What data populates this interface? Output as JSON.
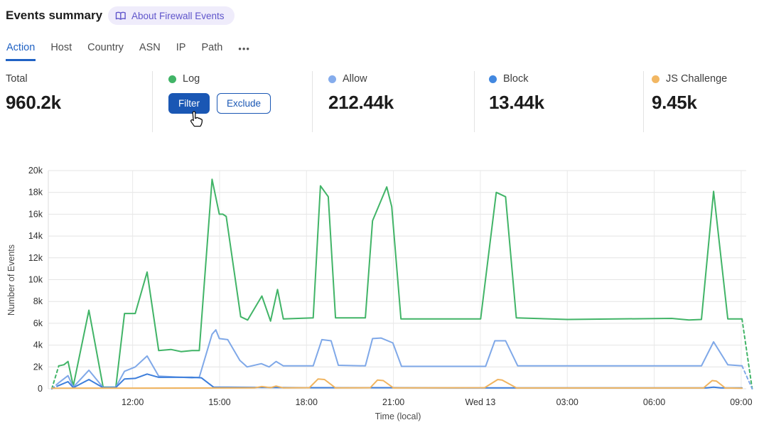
{
  "header": {
    "title": "Events summary",
    "about_badge": {
      "label": "About Firewall Events",
      "icon": "book-open-icon"
    }
  },
  "tabs": {
    "items": [
      {
        "label": "Action",
        "active": true
      },
      {
        "label": "Host",
        "active": false
      },
      {
        "label": "Country",
        "active": false
      },
      {
        "label": "ASN",
        "active": false
      },
      {
        "label": "IP",
        "active": false
      },
      {
        "label": "Path",
        "active": false
      }
    ],
    "more_label": "•••"
  },
  "stats": {
    "total": {
      "label": "Total",
      "value": "960.2k"
    },
    "log": {
      "label": "Log",
      "color": "#41b467",
      "filter_label": "Filter",
      "exclude_label": "Exclude"
    },
    "allow": {
      "label": "Allow",
      "value": "212.44k",
      "color": "#85acec"
    },
    "block": {
      "label": "Block",
      "value": "13.44k",
      "color": "#4288e0"
    },
    "js_challenge": {
      "label": "JS Challenge",
      "value": "9.45k",
      "color": "#f2b763"
    }
  },
  "chart_data": {
    "type": "line",
    "xlabel": "Time (local)",
    "ylabel": "Number of Events",
    "x_unit_note": "hours after 09:00 Tue, local time",
    "x_domain": [
      0.09,
      24.42
    ],
    "ylim": [
      0,
      20
    ],
    "y_unit": "k events",
    "grid": true,
    "x_ticks": [
      {
        "h": 3,
        "label": "12:00"
      },
      {
        "h": 6,
        "label": "15:00"
      },
      {
        "h": 9,
        "label": "18:00"
      },
      {
        "h": 12,
        "label": "21:00"
      },
      {
        "h": 15,
        "label": "Wed 13"
      },
      {
        "h": 18,
        "label": "03:00"
      },
      {
        "h": 21,
        "label": "06:00"
      },
      {
        "h": 24,
        "label": "09:00"
      }
    ],
    "y_ticks": [
      {
        "v": 0,
        "label": "0"
      },
      {
        "v": 2,
        "label": "2k"
      },
      {
        "v": 4,
        "label": "4k"
      },
      {
        "v": 6,
        "label": "6k"
      },
      {
        "v": 8,
        "label": "8k"
      },
      {
        "v": 10,
        "label": "10k"
      },
      {
        "v": 12,
        "label": "12k"
      },
      {
        "v": 14,
        "label": "14k"
      },
      {
        "v": 16,
        "label": "16k"
      },
      {
        "v": 18,
        "label": "18k"
      },
      {
        "v": 20,
        "label": "20k"
      }
    ],
    "series": [
      {
        "name": "Log",
        "color": "#41b467",
        "dash_pre": [
          [
            0.21,
            0
          ],
          [
            0.45,
            2.1
          ]
        ],
        "points": [
          [
            0.45,
            2.1
          ],
          [
            0.63,
            2.2
          ],
          [
            0.77,
            2.5
          ],
          [
            0.95,
            0.25
          ],
          [
            1.49,
            7.2
          ],
          [
            1.98,
            0.15
          ],
          [
            2.42,
            0.15
          ],
          [
            2.72,
            6.9
          ],
          [
            3.09,
            6.9
          ],
          [
            3.5,
            10.7
          ],
          [
            3.9,
            3.5
          ],
          [
            4.32,
            3.6
          ],
          [
            4.68,
            3.4
          ],
          [
            5.05,
            3.5
          ],
          [
            5.3,
            3.5
          ],
          [
            5.74,
            19.2
          ],
          [
            5.99,
            16.0
          ],
          [
            6.11,
            16.0
          ],
          [
            6.23,
            15.8
          ],
          [
            6.73,
            6.6
          ],
          [
            6.97,
            6.3
          ],
          [
            7.46,
            8.5
          ],
          [
            7.76,
            6.2
          ],
          [
            8.0,
            9.1
          ],
          [
            8.2,
            6.4
          ],
          [
            9.23,
            6.5
          ],
          [
            9.48,
            18.6
          ],
          [
            9.75,
            17.6
          ],
          [
            10.0,
            6.5
          ],
          [
            11.03,
            6.5
          ],
          [
            11.28,
            15.4
          ],
          [
            11.77,
            18.5
          ],
          [
            11.94,
            16.7
          ],
          [
            12.26,
            6.4
          ],
          [
            15.01,
            6.4
          ],
          [
            15.55,
            18.0
          ],
          [
            15.87,
            17.6
          ],
          [
            16.24,
            6.5
          ],
          [
            18.0,
            6.35
          ],
          [
            21.6,
            6.45
          ],
          [
            22.2,
            6.3
          ],
          [
            22.63,
            6.35
          ],
          [
            23.05,
            18.1
          ],
          [
            23.54,
            6.4
          ],
          [
            24.03,
            6.4
          ]
        ],
        "dash_post": [
          [
            24.03,
            6.4
          ],
          [
            24.38,
            0
          ]
        ]
      },
      {
        "name": "Allow",
        "color": "#7fa8e8",
        "dash_pre": [
          [
            0.21,
            0
          ],
          [
            0.45,
            0.55
          ]
        ],
        "points": [
          [
            0.45,
            0.55
          ],
          [
            0.77,
            1.2
          ],
          [
            0.95,
            0.15
          ],
          [
            1.49,
            1.7
          ],
          [
            1.98,
            0.12
          ],
          [
            2.42,
            0.15
          ],
          [
            2.72,
            1.6
          ],
          [
            3.09,
            2.0
          ],
          [
            3.5,
            3.0
          ],
          [
            3.9,
            1.15
          ],
          [
            4.32,
            1.1
          ],
          [
            5.05,
            1.0
          ],
          [
            5.3,
            1.05
          ],
          [
            5.74,
            5.0
          ],
          [
            5.87,
            5.4
          ],
          [
            5.99,
            4.6
          ],
          [
            6.28,
            4.5
          ],
          [
            6.7,
            2.6
          ],
          [
            6.95,
            2.0
          ],
          [
            7.44,
            2.3
          ],
          [
            7.71,
            2.0
          ],
          [
            7.95,
            2.5
          ],
          [
            8.2,
            2.1
          ],
          [
            9.23,
            2.1
          ],
          [
            9.53,
            4.5
          ],
          [
            9.85,
            4.4
          ],
          [
            10.1,
            2.15
          ],
          [
            11.03,
            2.1
          ],
          [
            11.28,
            4.6
          ],
          [
            11.57,
            4.65
          ],
          [
            11.98,
            4.2
          ],
          [
            12.28,
            2.05
          ],
          [
            15.18,
            2.05
          ],
          [
            15.5,
            4.4
          ],
          [
            15.87,
            4.4
          ],
          [
            16.29,
            2.1
          ],
          [
            22.63,
            2.1
          ],
          [
            23.05,
            4.3
          ],
          [
            23.54,
            2.2
          ],
          [
            24.03,
            2.1
          ]
        ],
        "dash_post": [
          [
            24.03,
            2.1
          ],
          [
            24.38,
            0
          ]
        ]
      },
      {
        "name": "Block",
        "color": "#3d7edb",
        "dash_pre": [
          [
            0.21,
            0
          ],
          [
            0.45,
            0.3
          ]
        ],
        "points": [
          [
            0.45,
            0.3
          ],
          [
            0.77,
            0.65
          ],
          [
            0.95,
            0.1
          ],
          [
            1.49,
            0.85
          ],
          [
            1.98,
            0.1
          ],
          [
            2.42,
            0.12
          ],
          [
            2.72,
            0.9
          ],
          [
            3.09,
            0.95
          ],
          [
            3.5,
            1.35
          ],
          [
            3.9,
            1.05
          ],
          [
            5.05,
            1.05
          ],
          [
            5.37,
            1.0
          ],
          [
            5.79,
            0.15
          ],
          [
            9.0,
            0.1
          ],
          [
            12.0,
            0.1
          ],
          [
            15.0,
            0.08
          ],
          [
            22.8,
            0.08
          ],
          [
            23.05,
            0.15
          ],
          [
            23.3,
            0.08
          ],
          [
            24.03,
            0.08
          ]
        ],
        "dash_post": []
      },
      {
        "name": "JS Challenge",
        "color": "#f0b45f",
        "dash_pre": [],
        "points": [
          [
            0.21,
            0.05
          ],
          [
            3.0,
            0.06
          ],
          [
            7.2,
            0.08
          ],
          [
            7.46,
            0.2
          ],
          [
            7.76,
            0.1
          ],
          [
            7.95,
            0.25
          ],
          [
            8.2,
            0.08
          ],
          [
            9.1,
            0.1
          ],
          [
            9.4,
            0.9
          ],
          [
            9.62,
            0.85
          ],
          [
            10.0,
            0.08
          ],
          [
            11.2,
            0.1
          ],
          [
            11.45,
            0.8
          ],
          [
            11.65,
            0.75
          ],
          [
            12.0,
            0.08
          ],
          [
            15.15,
            0.1
          ],
          [
            15.6,
            0.85
          ],
          [
            15.75,
            0.8
          ],
          [
            16.25,
            0.07
          ],
          [
            22.7,
            0.07
          ],
          [
            23.0,
            0.75
          ],
          [
            23.15,
            0.7
          ],
          [
            23.45,
            0.07
          ],
          [
            24.03,
            0.05
          ]
        ],
        "dash_post": []
      }
    ]
  }
}
